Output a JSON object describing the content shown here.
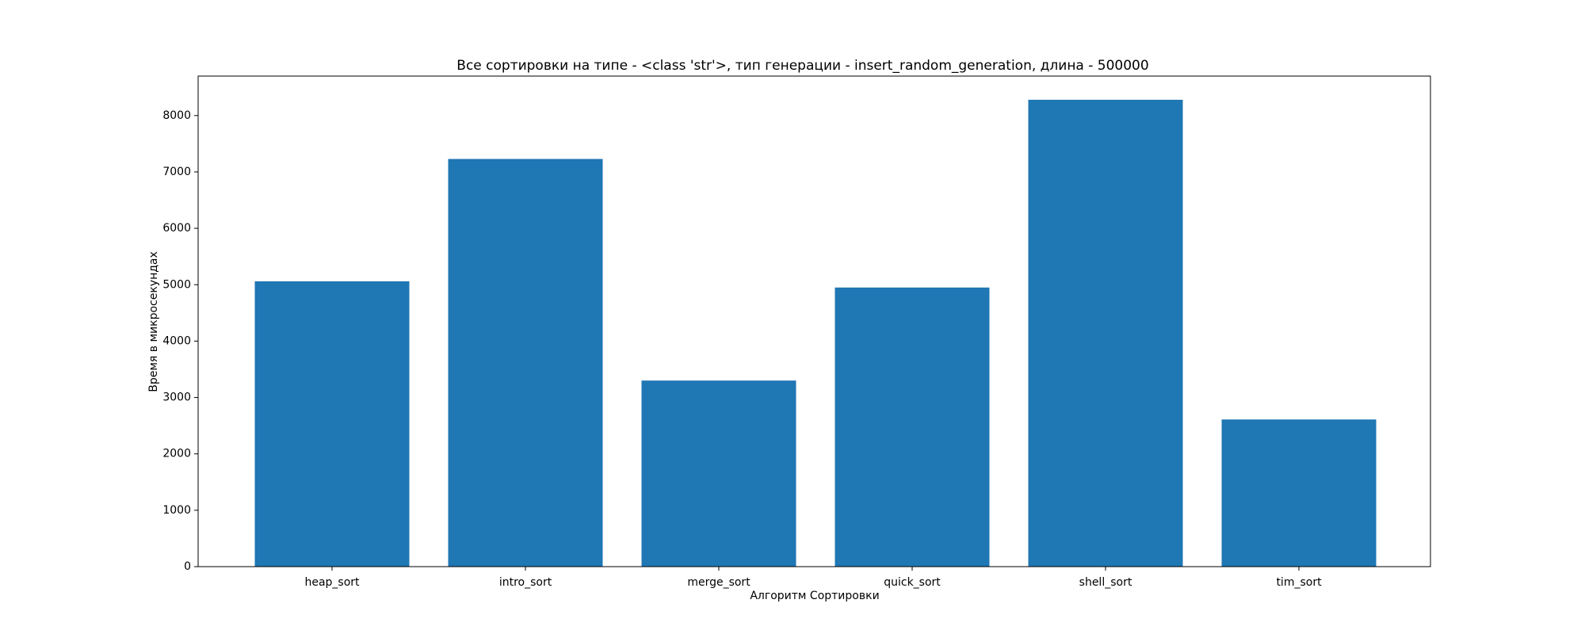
{
  "chart_data": {
    "type": "bar",
    "title": "Все сортировки на типе - <class 'str'>, тип генерации - insert_random_generation, длина - 500000",
    "xlabel": "Алгоритм Сортировки",
    "ylabel": "Время в микросекундах",
    "categories": [
      "heap_sort",
      "intro_sort",
      "merge_sort",
      "quick_sort",
      "shell_sort",
      "tim_sort"
    ],
    "values": [
      5060,
      7230,
      3300,
      4950,
      8280,
      2610
    ],
    "ylim": [
      0,
      8700
    ],
    "yticks": [
      0,
      1000,
      2000,
      3000,
      4000,
      5000,
      6000,
      7000,
      8000
    ],
    "grid": false,
    "bar_color": "#1f77b4"
  }
}
